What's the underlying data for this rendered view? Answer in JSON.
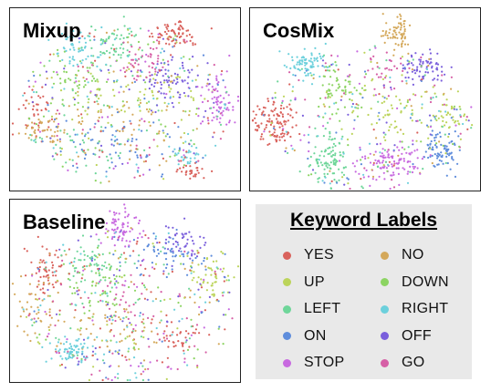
{
  "chart_data": {
    "type": "scatter",
    "panels": [
      {
        "id": "mixup",
        "title": "Mixup"
      },
      {
        "id": "cosmix",
        "title": "CosMix"
      },
      {
        "id": "baseline",
        "title": "Baseline"
      }
    ],
    "legend": {
      "title": "Keyword Labels",
      "items": [
        {
          "label": "YES",
          "color": "#d9625c"
        },
        {
          "label": "NO",
          "color": "#d4a85a"
        },
        {
          "label": "UP",
          "color": "#bcd45a"
        },
        {
          "label": "DOWN",
          "color": "#8cd462"
        },
        {
          "label": "LEFT",
          "color": "#6fd69a"
        },
        {
          "label": "RIGHT",
          "color": "#6cd0dc"
        },
        {
          "label": "ON",
          "color": "#5f8ddc"
        },
        {
          "label": "OFF",
          "color": "#7a5fdc"
        },
        {
          "label": "STOP",
          "color": "#c86ae0"
        },
        {
          "label": "GO",
          "color": "#d65fa6"
        }
      ]
    }
  }
}
